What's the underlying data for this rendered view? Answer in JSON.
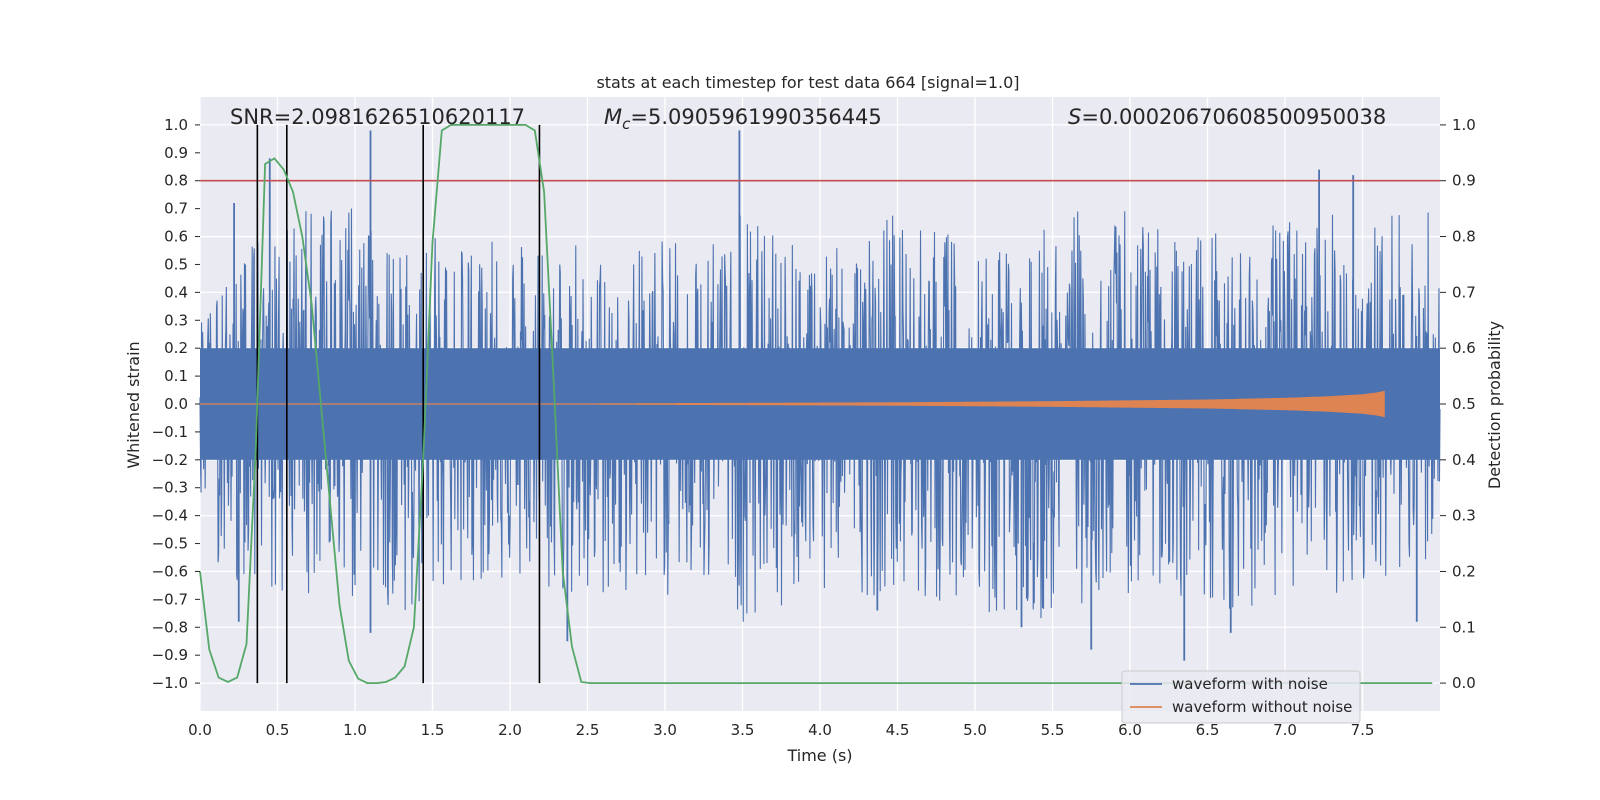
{
  "chart_data": {
    "type": "line",
    "title": "stats at each timestep for test data 664 [signal=1.0]",
    "xlabel": "Time (s)",
    "ylabel": "Whitened strain",
    "y2label": "Detection probability",
    "xlim": [
      0.0,
      8.0
    ],
    "ylim": [
      -1.1,
      1.1
    ],
    "y2lim": [
      -0.05,
      1.05
    ],
    "xticks": [
      0.0,
      0.5,
      1.0,
      1.5,
      2.0,
      2.5,
      3.0,
      3.5,
      4.0,
      4.5,
      5.0,
      5.5,
      6.0,
      6.5,
      7.0,
      7.5
    ],
    "xtick_labels": [
      "0.0",
      "0.5",
      "1.0",
      "1.5",
      "2.0",
      "2.5",
      "3.0",
      "3.5",
      "4.0",
      "4.5",
      "5.0",
      "5.5",
      "6.0",
      "6.5",
      "7.0",
      "7.5"
    ],
    "yticks": [
      1.0,
      0.9,
      0.8,
      0.7,
      0.6,
      0.5,
      0.4,
      0.3,
      0.2,
      0.1,
      0.0,
      -0.1,
      -0.2,
      -0.3,
      -0.4,
      -0.5,
      -0.6,
      -0.7,
      -0.8,
      -0.9,
      -1.0
    ],
    "ytick_labels": [
      "1.0",
      "0.9",
      "0.8",
      "0.7",
      "0.6",
      "0.5",
      "0.4",
      "0.3",
      "0.2",
      "0.1",
      "0.0",
      "−0.1",
      "−0.2",
      "−0.3",
      "−0.4",
      "−0.5",
      "−0.6",
      "−0.7",
      "−0.8",
      "−0.9",
      "−1.0"
    ],
    "y2ticks": [
      1.0,
      0.9,
      0.8,
      0.7,
      0.6,
      0.5,
      0.4,
      0.3,
      0.2,
      0.1,
      0.0
    ],
    "y2tick_labels": [
      "1.0",
      "0.9",
      "0.8",
      "0.7",
      "0.6",
      "0.5",
      "0.4",
      "0.3",
      "0.2",
      "0.1",
      "0.0"
    ],
    "threshold": 0.9,
    "vlines": [
      0.37,
      0.56,
      1.44,
      2.19
    ],
    "annotations": {
      "snr": "SNR=2.0981626510620117",
      "mc_symbol": "M",
      "mc_sub": "c",
      "mc_value": "=5.0905961990356445",
      "s_symbol": "S",
      "s_value": "=0.00020670608500950038"
    },
    "series": [
      {
        "name": "waveform with noise",
        "color": "#4c72b0",
        "description": "dense noisy strain; envelope peaks roughly between -1.0 and 1.0",
        "envelope_upper": [
          0.3,
          0.65,
          0.75,
          0.6,
          0.68,
          0.63,
          0.55,
          0.62,
          0.7,
          0.57,
          0.68,
          0.6,
          0.64,
          0.72,
          0.66,
          0.6,
          0.7,
          0.66,
          0.71
        ],
        "envelope_lower": [
          -0.55,
          -0.7,
          -0.68,
          -0.75,
          -0.63,
          -0.7,
          -0.72,
          -0.68,
          -0.8,
          -0.66,
          -0.7,
          -0.75,
          -0.8,
          -0.7,
          -0.68,
          -0.74,
          -0.7,
          -0.68,
          -0.55
        ],
        "spikes": [
          [
            1.1,
            0.98
          ],
          [
            3.48,
            0.98
          ],
          [
            7.22,
            0.84
          ],
          [
            7.44,
            0.82
          ],
          [
            0.22,
            0.72
          ],
          [
            0.45,
            0.88
          ],
          [
            6.35,
            -0.92
          ],
          [
            0.25,
            -0.78
          ],
          [
            1.1,
            -0.82
          ],
          [
            2.37,
            -0.85
          ],
          [
            4.37,
            -0.74
          ],
          [
            5.3,
            -0.8
          ],
          [
            5.75,
            -0.88
          ],
          [
            6.65,
            -0.82
          ],
          [
            7.85,
            -0.78
          ]
        ]
      },
      {
        "name": "waveform without noise",
        "color": "#dd8452",
        "description": "chirp signal growing from 0 near t=2.4 to amplitude ~0.045 at t=7.64",
        "x": [
          0.0,
          2.4,
          3.5,
          4.5,
          5.5,
          6.5,
          7.0,
          7.3,
          7.5,
          7.6,
          7.64
        ],
        "amplitude": [
          0.0,
          0.0,
          0.002,
          0.004,
          0.008,
          0.014,
          0.02,
          0.026,
          0.033,
          0.04,
          0.045
        ]
      },
      {
        "name": "detection probability",
        "color": "#55a868",
        "axis": "right",
        "x": [
          0.0,
          0.06,
          0.12,
          0.18,
          0.24,
          0.3,
          0.36,
          0.42,
          0.48,
          0.54,
          0.6,
          0.66,
          0.72,
          0.78,
          0.84,
          0.9,
          0.96,
          1.02,
          1.08,
          1.14,
          1.2,
          1.26,
          1.32,
          1.38,
          1.44,
          1.5,
          1.56,
          1.62,
          1.68,
          1.8,
          1.9,
          2.0,
          2.1,
          2.16,
          2.22,
          2.28,
          2.34,
          2.4,
          2.46,
          2.52,
          3.0,
          4.0,
          5.0,
          6.0,
          7.0,
          7.95
        ],
        "y": [
          0.2,
          0.06,
          0.01,
          0.002,
          0.01,
          0.07,
          0.42,
          0.93,
          0.94,
          0.92,
          0.88,
          0.8,
          0.68,
          0.5,
          0.32,
          0.14,
          0.04,
          0.008,
          0.0,
          0.0,
          0.002,
          0.01,
          0.03,
          0.1,
          0.4,
          0.79,
          0.99,
          1.0,
          1.0,
          1.0,
          1.0,
          1.0,
          1.0,
          0.99,
          0.88,
          0.55,
          0.2,
          0.065,
          0.002,
          0.0,
          0.0,
          0.0,
          0.0,
          0.0,
          0.0,
          0.0
        ]
      }
    ],
    "legend": {
      "placement": "lower-right",
      "entries": [
        {
          "label": "waveform with noise",
          "color": "#4c72b0"
        },
        {
          "label": "waveform without noise",
          "color": "#dd8452"
        }
      ]
    }
  }
}
